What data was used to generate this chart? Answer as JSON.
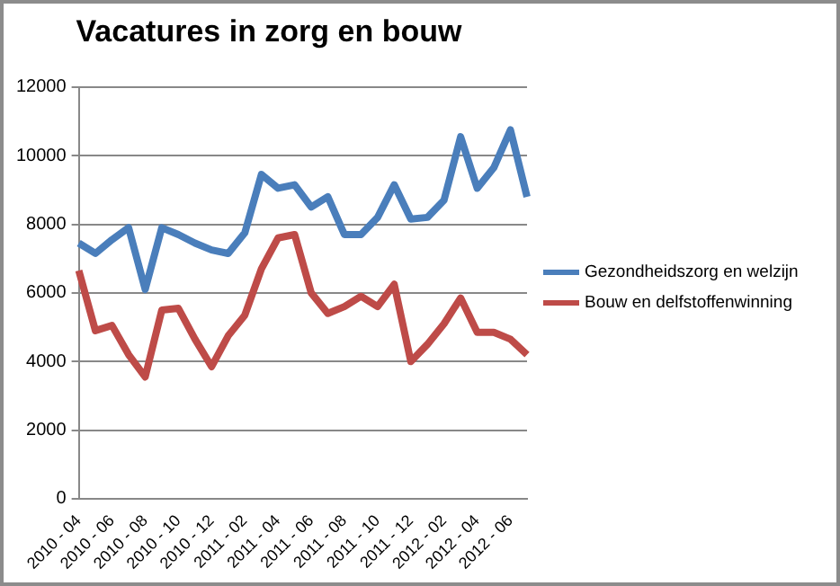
{
  "chart_data": {
    "type": "line",
    "title": "Vacatures in zorg en bouw",
    "categories": [
      "2010 - 04",
      null,
      "2010 - 06",
      null,
      "2010 - 08",
      null,
      "2010 - 10",
      null,
      "2010 - 12",
      null,
      "2011 - 02",
      null,
      "2011 - 04",
      null,
      "2011 - 06",
      null,
      "2011 - 08",
      null,
      "2011 - 10",
      null,
      "2011 - 12",
      null,
      "2012 - 02",
      null,
      "2012 - 04",
      null,
      "2012 - 06",
      null
    ],
    "series": [
      {
        "name": "Gezondheidszorg en welzijn",
        "color": "#4a7ebb",
        "values": [
          7450,
          7150,
          7550,
          7900,
          6100,
          7900,
          7700,
          7450,
          7250,
          7150,
          7750,
          9450,
          9050,
          9150,
          8500,
          8800,
          7700,
          7700,
          8200,
          9150,
          8150,
          8200,
          8700,
          10550,
          9050,
          9650,
          10750,
          8800
        ]
      },
      {
        "name": "Bouw en delfstoffenwinning",
        "color": "#be4b48",
        "values": [
          6650,
          4900,
          5050,
          4200,
          3550,
          5500,
          5550,
          4650,
          3850,
          4750,
          5350,
          6700,
          7600,
          7700,
          6000,
          5400,
          5600,
          5900,
          5600,
          6250,
          4000,
          4500,
          5100,
          5850,
          4850,
          4850,
          4650,
          4200
        ]
      }
    ],
    "ylim": [
      0,
      12000
    ],
    "yticks": [
      0,
      2000,
      4000,
      6000,
      8000,
      10000,
      12000
    ],
    "grid": "y",
    "legend": "right",
    "marker": "none",
    "line_style": "solid"
  }
}
